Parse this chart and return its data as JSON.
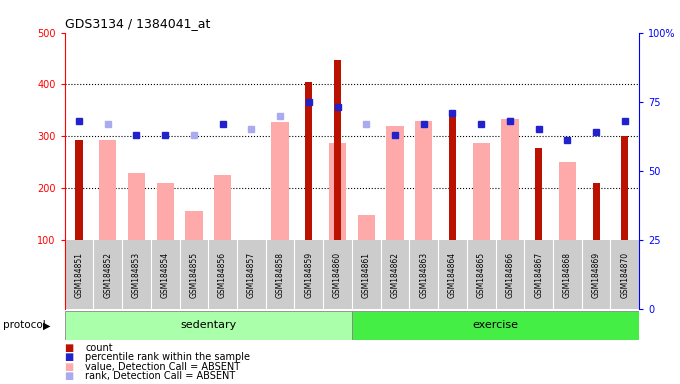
{
  "title": "GDS3134 / 1384041_at",
  "samples": [
    "GSM184851",
    "GSM184852",
    "GSM184853",
    "GSM184854",
    "GSM184855",
    "GSM184856",
    "GSM184857",
    "GSM184858",
    "GSM184859",
    "GSM184860",
    "GSM184861",
    "GSM184862",
    "GSM184863",
    "GSM184864",
    "GSM184865",
    "GSM184866",
    "GSM184867",
    "GSM184868",
    "GSM184869",
    "GSM184870"
  ],
  "count_values": [
    293,
    null,
    null,
    null,
    null,
    null,
    null,
    null,
    405,
    447,
    null,
    null,
    null,
    345,
    null,
    null,
    277,
    null,
    210,
    300
  ],
  "pink_bar_values": [
    null,
    293,
    230,
    210,
    155,
    225,
    null,
    328,
    null,
    288,
    148,
    320,
    330,
    null,
    287,
    334,
    null,
    250,
    null,
    null
  ],
  "blue_square_values": [
    68,
    null,
    63,
    63,
    null,
    67,
    null,
    null,
    75,
    73,
    null,
    63,
    67,
    71,
    67,
    68,
    65,
    61,
    64,
    68
  ],
  "light_blue_square_values": [
    null,
    67,
    null,
    null,
    63,
    null,
    65,
    70,
    null,
    null,
    67,
    null,
    null,
    null,
    null,
    68,
    null,
    null,
    null,
    null
  ],
  "ylim_data": [
    100,
    500
  ],
  "y_ticks_left": [
    100,
    200,
    300,
    400,
    500
  ],
  "y_ticks_right": [
    0,
    25,
    50,
    75,
    100
  ],
  "bar_dark_red": "#bb1100",
  "bar_pink": "#ffaaaa",
  "blue_sq": "#2222cc",
  "light_blue_sq": "#aaaaee",
  "green_band_sed": "#aaffaa",
  "green_band_ex": "#44ee44",
  "gray_label_bg": "#cccccc",
  "protocol_label": "protocol",
  "sedentary_label": "sedentary",
  "exercise_label": "exercise",
  "n_sedentary": 10,
  "n_exercise": 10
}
